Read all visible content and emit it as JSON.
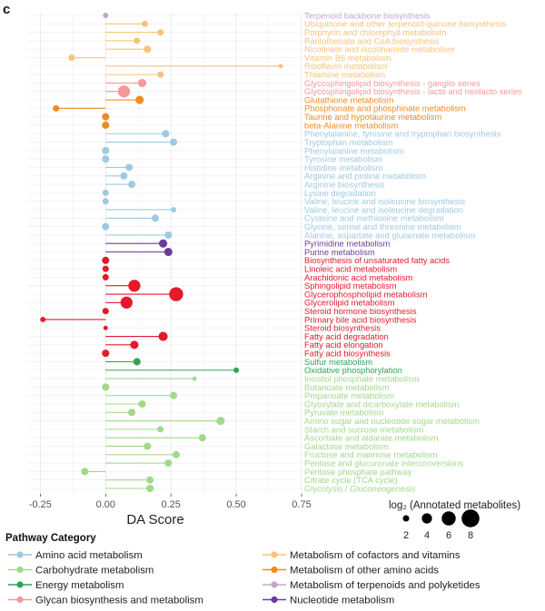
{
  "panel_label": "c",
  "chart_data": {
    "type": "scatter",
    "subtype": "lollipop",
    "xlabel": "DA Score",
    "ylabel": "",
    "xlim": [
      -0.3,
      0.75
    ],
    "xticks": [
      -0.25,
      0.0,
      0.25,
      0.5,
      0.75
    ],
    "xtick_labels": [
      "-0.25",
      "0.00",
      "0.25",
      "0.50",
      "0.75"
    ],
    "grid": true,
    "size_legend": {
      "title": "log₂ (Annotated metabolites)",
      "values": [
        2,
        4,
        6,
        8
      ]
    },
    "legend_title": "Pathway Category",
    "categories": [
      {
        "name": "Amino acid metabolism",
        "color": "#9ecae1"
      },
      {
        "name": "Carbohydrate metabolism",
        "color": "#a1d98b"
      },
      {
        "name": "Energy metabolism",
        "color": "#31a354"
      },
      {
        "name": "Glycan biosynthesis and metabolism",
        "color": "#f4989c"
      },
      {
        "name": "Lipid metabolism",
        "color": "#e31a2c"
      },
      {
        "name": "Metabolism of cofactors and vitamins",
        "color": "#f8c27a"
      },
      {
        "name": "Metabolism of other amino acids",
        "color": "#f28a1c"
      },
      {
        "name": "Metabolism of terpenoids and polyketides",
        "color": "#c2a5cf"
      },
      {
        "name": "Nucleotide metabolism",
        "color": "#6a3d9a"
      }
    ],
    "pathways": [
      {
        "name": "Terpenoid backbone biosynthesis",
        "category": 7,
        "x": 0.0,
        "size": 1.5
      },
      {
        "name": "Ubiquinone and other terpenoid-quinone biosynthesis",
        "category": 5,
        "x": 0.15,
        "size": 2
      },
      {
        "name": "Porphyrin and chlorophyll metabolism",
        "category": 5,
        "x": 0.21,
        "size": 2
      },
      {
        "name": "Pantothenate and CoA biosynthesis",
        "category": 5,
        "x": 0.12,
        "size": 2
      },
      {
        "name": "Nicotinate and nicotinamide metabolism",
        "category": 5,
        "x": 0.16,
        "size": 2.5
      },
      {
        "name": "Vitamin B6 metabolism",
        "category": 5,
        "x": -0.13,
        "size": 2
      },
      {
        "name": "Riboflavin metabolism",
        "category": 5,
        "x": 0.67,
        "size": 1
      },
      {
        "name": "Thiamine metabolism",
        "category": 5,
        "x": 0.21,
        "size": 2
      },
      {
        "name": "Glycosphingolipid biosynthesis - ganglio series",
        "category": 3,
        "x": 0.14,
        "size": 3
      },
      {
        "name": "Glycosphingolipid biosynthesis - lacto and neolacto series",
        "category": 3,
        "x": 0.07,
        "size": 5
      },
      {
        "name": "Glutathione metabolism",
        "category": 6,
        "x": 0.13,
        "size": 3
      },
      {
        "name": "Phosphonate and phosphinate metabolism",
        "category": 6,
        "x": -0.19,
        "size": 2
      },
      {
        "name": "Taurine and hypotaurine metabolism",
        "category": 6,
        "x": 0.0,
        "size": 2.5
      },
      {
        "name": "beta-Alanine metabolism",
        "category": 6,
        "x": 0.0,
        "size": 2.5
      },
      {
        "name": "Phenylalanine, tyrosine and tryptophan biosynthesis",
        "category": 0,
        "x": 0.23,
        "size": 2.5
      },
      {
        "name": "Tryptophan metabolism",
        "category": 0,
        "x": 0.26,
        "size": 2.5
      },
      {
        "name": "Phenylalanine metabolism",
        "category": 0,
        "x": 0.0,
        "size": 2.5
      },
      {
        "name": "Tyrosine metabolism",
        "category": 0,
        "x": 0.0,
        "size": 2.5
      },
      {
        "name": "Histidine metabolism",
        "category": 0,
        "x": 0.09,
        "size": 2.5
      },
      {
        "name": "Arginine and proline metabolism",
        "category": 0,
        "x": 0.07,
        "size": 2.5
      },
      {
        "name": "Arginine biosynthesis",
        "category": 0,
        "x": 0.1,
        "size": 2.5
      },
      {
        "name": "Lysine degradation",
        "category": 0,
        "x": 0.0,
        "size": 2
      },
      {
        "name": "Valine, leucine and isoleucine biosynthesis",
        "category": 0,
        "x": 0.0,
        "size": 2
      },
      {
        "name": "Valine, leucine and isoleucine degradation",
        "category": 0,
        "x": 0.26,
        "size": 1.5
      },
      {
        "name": "Cysteine and methionine metabolism",
        "category": 0,
        "x": 0.19,
        "size": 2.5
      },
      {
        "name": "Glycine, serine and threonine metabolism",
        "category": 0,
        "x": 0.0,
        "size": 2.5
      },
      {
        "name": "Alanine, aspartate and glutamate metabolism",
        "category": 0,
        "x": 0.24,
        "size": 2.5
      },
      {
        "name": "Pyrimidine metabolism",
        "category": 8,
        "x": 0.22,
        "size": 3
      },
      {
        "name": "Purine metabolism",
        "category": 8,
        "x": 0.24,
        "size": 3
      },
      {
        "name": "Biosynthesis of unsaturated fatty acids",
        "category": 4,
        "x": 0.0,
        "size": 2.5
      },
      {
        "name": "Linoleic acid metabolism",
        "category": 4,
        "x": 0.0,
        "size": 2
      },
      {
        "name": "Arachidonic acid metabolism",
        "category": 4,
        "x": 0.0,
        "size": 2
      },
      {
        "name": "Sphingolipid metabolism",
        "category": 4,
        "x": 0.11,
        "size": 5
      },
      {
        "name": "Glycerophospholipid metabolism",
        "category": 4,
        "x": 0.27,
        "size": 6
      },
      {
        "name": "Glycerolipid metabolism",
        "category": 4,
        "x": 0.08,
        "size": 5
      },
      {
        "name": "Steroid hormone biosynthesis",
        "category": 4,
        "x": 0.0,
        "size": 2
      },
      {
        "name": "Primary bile acid biosynthesis",
        "category": 4,
        "x": -0.24,
        "size": 1.5
      },
      {
        "name": "Steroid biosynthesis",
        "category": 4,
        "x": 0.0,
        "size": 1
      },
      {
        "name": "Fatty acid degradation",
        "category": 4,
        "x": 0.22,
        "size": 3.5
      },
      {
        "name": "Fatty acid elongation",
        "category": 4,
        "x": 0.11,
        "size": 3
      },
      {
        "name": "Fatty acid biosynthesis",
        "category": 4,
        "x": 0.0,
        "size": 2.5
      },
      {
        "name": "Sulfur metabolism",
        "category": 2,
        "x": 0.12,
        "size": 2.5
      },
      {
        "name": "Oxidative phosphorylation",
        "category": 2,
        "x": 0.5,
        "size": 1.5
      },
      {
        "name": "Inositol phosphate metabolism",
        "category": 1,
        "x": 0.34,
        "size": 1
      },
      {
        "name": "Butanoate metabolism",
        "category": 1,
        "x": 0.0,
        "size": 2.5
      },
      {
        "name": "Propanoate metabolism",
        "category": 1,
        "x": 0.26,
        "size": 2.5
      },
      {
        "name": "Glyoxylate and dicarboxylate metabolism",
        "category": 1,
        "x": 0.14,
        "size": 2.5
      },
      {
        "name": "Pyruvate metabolism",
        "category": 1,
        "x": 0.1,
        "size": 2.5
      },
      {
        "name": "Amino sugar and nucleotide sugar metabolism",
        "category": 1,
        "x": 0.44,
        "size": 3
      },
      {
        "name": "Starch and sucrose metabolism",
        "category": 1,
        "x": 0.21,
        "size": 2
      },
      {
        "name": "Ascorbate and aldarate metabolism",
        "category": 1,
        "x": 0.37,
        "size": 2.5
      },
      {
        "name": "Galactose metabolism",
        "category": 1,
        "x": 0.16,
        "size": 2.5
      },
      {
        "name": "Fructose and mannose metabolism",
        "category": 1,
        "x": 0.27,
        "size": 2.5
      },
      {
        "name": "Pentose and glucuronate interconversions",
        "category": 1,
        "x": 0.24,
        "size": 2.5
      },
      {
        "name": "Pentose phosphate pathway",
        "category": 1,
        "x": -0.08,
        "size": 2.5
      },
      {
        "name": "Citrate cycle (TCA cycle)",
        "category": 1,
        "x": 0.17,
        "size": 2.5
      },
      {
        "name": "Glycolysis / Gluconeogenesis",
        "category": 1,
        "x": 0.17,
        "size": 2.5
      }
    ]
  }
}
